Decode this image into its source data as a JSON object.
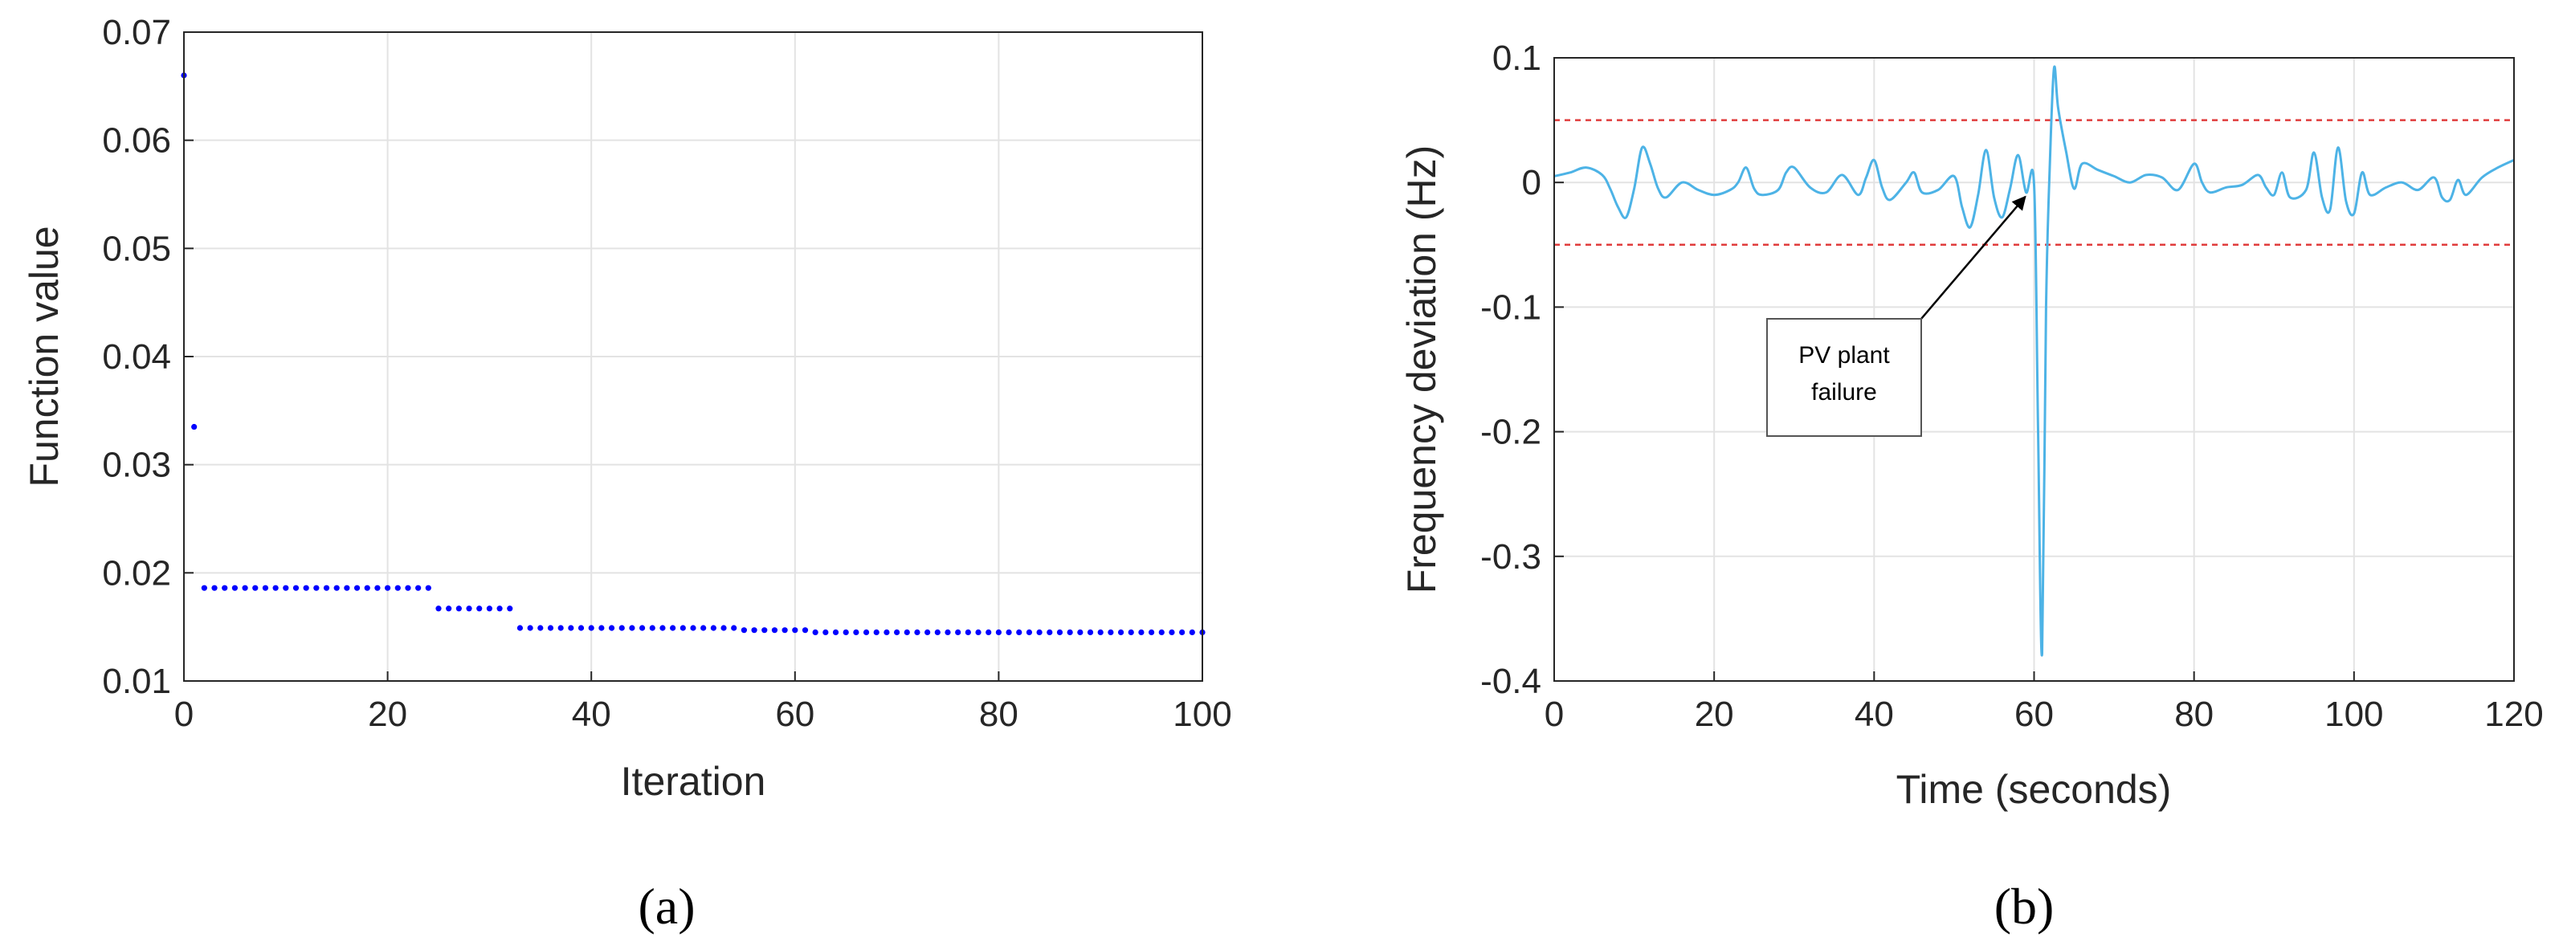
{
  "chart_data": [
    {
      "type": "scatter",
      "panel_label": "(a)",
      "title": "",
      "xlabel": "Iteration",
      "ylabel": "Function value",
      "xlim": [
        0,
        100
      ],
      "ylim": [
        0.01,
        0.07
      ],
      "xticks": [
        0,
        20,
        40,
        60,
        80,
        100
      ],
      "xtick_labels": [
        "0",
        "20",
        "40",
        "60",
        "80",
        "100"
      ],
      "yticks": [
        0.01,
        0.02,
        0.03,
        0.04,
        0.05,
        0.06,
        0.07
      ],
      "ytick_labels": [
        "0.01",
        "0.02",
        "0.03",
        "0.04",
        "0.05",
        "0.06",
        "0.07"
      ],
      "grid": true,
      "marker_color": "#0000ff",
      "series": [
        {
          "points": [
            [
              0,
              0.066
            ],
            [
              1,
              0.0335
            ],
            [
              2,
              0.0186
            ],
            [
              3,
              0.0186
            ],
            [
              4,
              0.0186
            ],
            [
              5,
              0.0186
            ],
            [
              6,
              0.0186
            ],
            [
              7,
              0.0186
            ],
            [
              8,
              0.0186
            ],
            [
              9,
              0.0186
            ],
            [
              10,
              0.0186
            ],
            [
              11,
              0.0186
            ],
            [
              12,
              0.0186
            ],
            [
              13,
              0.0186
            ],
            [
              14,
              0.0186
            ],
            [
              15,
              0.0186
            ],
            [
              16,
              0.0186
            ],
            [
              17,
              0.0186
            ],
            [
              18,
              0.0186
            ],
            [
              19,
              0.0186
            ],
            [
              20,
              0.0186
            ],
            [
              21,
              0.0186
            ],
            [
              22,
              0.0186
            ],
            [
              23,
              0.0186
            ],
            [
              24,
              0.0186
            ],
            [
              25,
              0.0167
            ],
            [
              26,
              0.0167
            ],
            [
              27,
              0.0167
            ],
            [
              28,
              0.0167
            ],
            [
              29,
              0.0167
            ],
            [
              30,
              0.0167
            ],
            [
              31,
              0.0167
            ],
            [
              32,
              0.0167
            ],
            [
              33,
              0.0149
            ],
            [
              34,
              0.0149
            ],
            [
              35,
              0.0149
            ],
            [
              36,
              0.0149
            ],
            [
              37,
              0.0149
            ],
            [
              38,
              0.0149
            ],
            [
              39,
              0.0149
            ],
            [
              40,
              0.0149
            ],
            [
              41,
              0.0149
            ],
            [
              42,
              0.0149
            ],
            [
              43,
              0.0149
            ],
            [
              44,
              0.0149
            ],
            [
              45,
              0.0149
            ],
            [
              46,
              0.0149
            ],
            [
              47,
              0.0149
            ],
            [
              48,
              0.0149
            ],
            [
              49,
              0.0149
            ],
            [
              50,
              0.0149
            ],
            [
              51,
              0.0149
            ],
            [
              52,
              0.0149
            ],
            [
              53,
              0.0149
            ],
            [
              54,
              0.0149
            ],
            [
              55,
              0.0147
            ],
            [
              56,
              0.0147
            ],
            [
              57,
              0.0147
            ],
            [
              58,
              0.0147
            ],
            [
              59,
              0.0147
            ],
            [
              60,
              0.0147
            ],
            [
              61,
              0.0147
            ],
            [
              62,
              0.0145
            ],
            [
              63,
              0.0145
            ],
            [
              64,
              0.0145
            ],
            [
              65,
              0.0145
            ],
            [
              66,
              0.0145
            ],
            [
              67,
              0.0145
            ],
            [
              68,
              0.0145
            ],
            [
              69,
              0.0145
            ],
            [
              70,
              0.0145
            ],
            [
              71,
              0.0145
            ],
            [
              72,
              0.0145
            ],
            [
              73,
              0.0145
            ],
            [
              74,
              0.0145
            ],
            [
              75,
              0.0145
            ],
            [
              76,
              0.0145
            ],
            [
              77,
              0.0145
            ],
            [
              78,
              0.0145
            ],
            [
              79,
              0.0145
            ],
            [
              80,
              0.0145
            ],
            [
              81,
              0.0145
            ],
            [
              82,
              0.0145
            ],
            [
              83,
              0.0145
            ],
            [
              84,
              0.0145
            ],
            [
              85,
              0.0145
            ],
            [
              86,
              0.0145
            ],
            [
              87,
              0.0145
            ],
            [
              88,
              0.0145
            ],
            [
              89,
              0.0145
            ],
            [
              90,
              0.0145
            ],
            [
              91,
              0.0145
            ],
            [
              92,
              0.0145
            ],
            [
              93,
              0.0145
            ],
            [
              94,
              0.0145
            ],
            [
              95,
              0.0145
            ],
            [
              96,
              0.0145
            ],
            [
              97,
              0.0145
            ],
            [
              98,
              0.0145
            ],
            [
              99,
              0.0145
            ],
            [
              100,
              0.0145
            ]
          ]
        }
      ]
    },
    {
      "type": "line",
      "panel_label": "(b)",
      "title": "",
      "xlabel": "Time (seconds)",
      "ylabel": "Frequency deviation (Hz)",
      "xlim": [
        0,
        120
      ],
      "ylim": [
        -0.4,
        0.1
      ],
      "xticks": [
        0,
        20,
        40,
        60,
        80,
        100,
        120
      ],
      "xtick_labels": [
        "0",
        "20",
        "40",
        "60",
        "80",
        "100",
        "120"
      ],
      "yticks": [
        -0.4,
        -0.3,
        -0.2,
        -0.1,
        0,
        0.1
      ],
      "ytick_labels": [
        "-0.4",
        "-0.3",
        "-0.2",
        "-0.1",
        "0",
        "0.1"
      ],
      "grid": true,
      "line_color": "#4db3e6",
      "series": [
        {
          "x": [
            0,
            2,
            4,
            6,
            7,
            8,
            9,
            10,
            11,
            12,
            13,
            14,
            16,
            18,
            20,
            22,
            23,
            24,
            25,
            26,
            28,
            29,
            30,
            32,
            34,
            36,
            38,
            39,
            40,
            41,
            42,
            44,
            45,
            46,
            48,
            50,
            51,
            52,
            53,
            54,
            55,
            56,
            57,
            58,
            59,
            60,
            60.5,
            61,
            61.5,
            62,
            62.5,
            63,
            64,
            65,
            66,
            68,
            70,
            72,
            74,
            76,
            78,
            80,
            81,
            82,
            84,
            86,
            88,
            89,
            90,
            91,
            92,
            94,
            95,
            96,
            97,
            98,
            99,
            100,
            101,
            102,
            104,
            106,
            108,
            110,
            111,
            112,
            113,
            114,
            116,
            118,
            120
          ],
          "y": [
            0.005,
            0.008,
            0.012,
            0.006,
            -0.005,
            -0.02,
            -0.028,
            -0.005,
            0.028,
            0.015,
            -0.005,
            -0.012,
            0.0,
            -0.006,
            -0.01,
            -0.006,
            0.0,
            0.012,
            -0.005,
            -0.01,
            -0.006,
            0.008,
            0.012,
            -0.004,
            -0.008,
            0.006,
            -0.01,
            0.004,
            0.018,
            -0.004,
            -0.014,
            0.0,
            0.008,
            -0.008,
            -0.006,
            0.005,
            -0.02,
            -0.036,
            -0.01,
            0.026,
            -0.012,
            -0.028,
            -0.005,
            0.022,
            -0.008,
            -0.002,
            -0.2,
            -0.378,
            -0.1,
            0.02,
            0.092,
            0.06,
            0.025,
            -0.005,
            0.015,
            0.01,
            0.005,
            0.0,
            0.006,
            0.004,
            -0.006,
            0.015,
            0.0,
            -0.008,
            -0.004,
            -0.002,
            0.006,
            -0.004,
            -0.01,
            0.008,
            -0.012,
            -0.006,
            0.024,
            -0.012,
            -0.022,
            0.028,
            -0.015,
            -0.025,
            0.008,
            -0.01,
            -0.004,
            0.0,
            -0.006,
            0.004,
            -0.012,
            -0.014,
            0.002,
            -0.01,
            0.004,
            0.012,
            0.018
          ]
        }
      ],
      "reference_lines": [
        0.05,
        -0.05
      ],
      "reference_color": "#e03c3c",
      "annotation": {
        "text_lines": [
          "PV plant",
          "failure"
        ],
        "arrow_target": [
          59.5,
          -0.005
        ]
      }
    }
  ]
}
